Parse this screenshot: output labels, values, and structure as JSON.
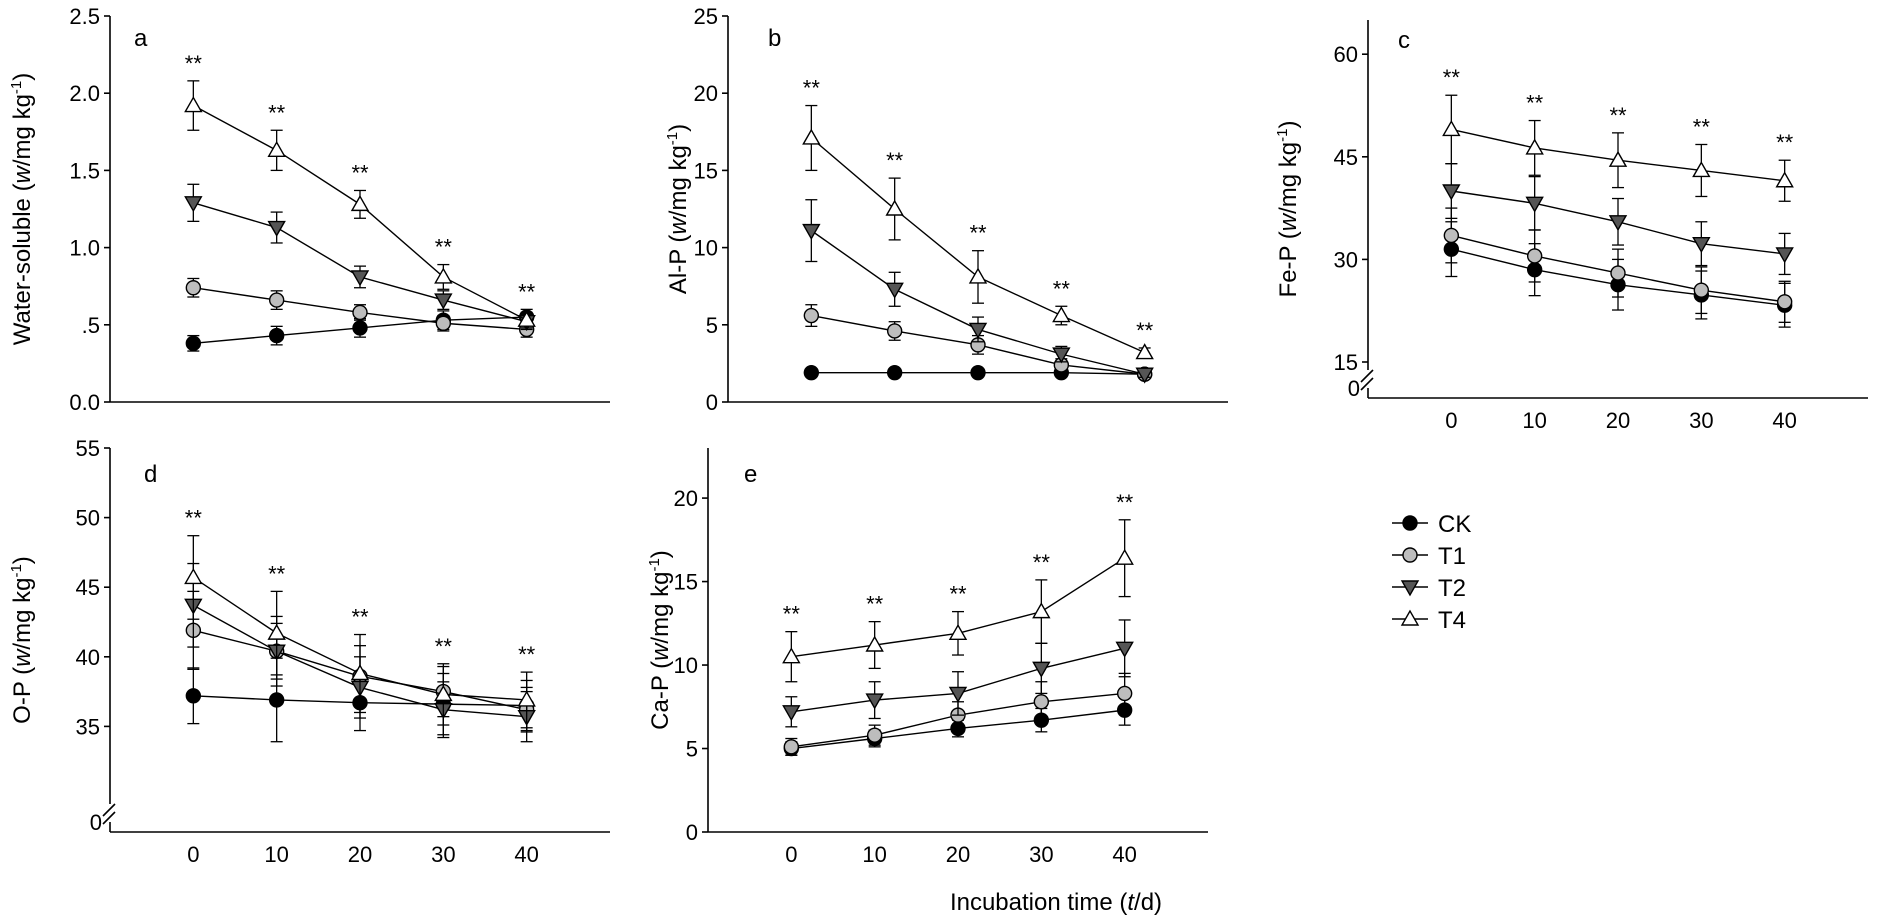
{
  "legend": [
    "CK",
    "T1",
    "T2",
    "T4"
  ],
  "shared_xlabel": {
    "pre": "Incubation time (",
    "var": "t",
    "post": "/d)"
  },
  "series_styles": {
    "CK": {
      "marker": "circle",
      "fill": "#000000"
    },
    "T1": {
      "marker": "circle",
      "fill": "#bdbdbd"
    },
    "T2": {
      "marker": "triangle-down",
      "fill": "#555555"
    },
    "T4": {
      "marker": "triangle-up",
      "fill": "#ffffff"
    }
  },
  "chart_data": [
    {
      "type": "line",
      "panel": "a",
      "ylabel": {
        "pre": "Water-soluble (",
        "var": "w",
        "post": "/mg kg",
        "sup": "-1",
        "end": ")"
      },
      "xlabel": "",
      "x": [
        0,
        10,
        20,
        30,
        40
      ],
      "xticks": [],
      "xlim": [
        -10,
        50
      ],
      "ylim": [
        0,
        2.5
      ],
      "yticks": [
        0,
        0.5,
        1.0,
        1.5,
        2.0,
        2.5
      ],
      "ytick_labels": [
        "0.0",
        ".5",
        "1.0",
        "1.5",
        "2.0",
        "2.5"
      ],
      "axis_break": false,
      "significance": [
        "**",
        "**",
        "**",
        "**",
        "**"
      ],
      "series": [
        {
          "name": "CK",
          "values": [
            0.38,
            0.43,
            0.48,
            0.53,
            0.55
          ],
          "err": [
            0.05,
            0.06,
            0.06,
            0.06,
            0.05
          ]
        },
        {
          "name": "T1",
          "values": [
            0.74,
            0.66,
            0.58,
            0.51,
            0.47
          ],
          "err": [
            0.06,
            0.06,
            0.05,
            0.05,
            0.05
          ]
        },
        {
          "name": "T2",
          "values": [
            1.29,
            1.13,
            0.81,
            0.66,
            0.52
          ],
          "err": [
            0.12,
            0.1,
            0.07,
            0.06,
            0.05
          ]
        },
        {
          "name": "T4",
          "values": [
            1.92,
            1.63,
            1.28,
            0.81,
            0.53
          ],
          "err": [
            0.16,
            0.13,
            0.09,
            0.08,
            0.05
          ]
        }
      ]
    },
    {
      "type": "line",
      "panel": "b",
      "ylabel": {
        "pre": "Al-P (",
        "var": "w",
        "post": "/mg kg",
        "sup": "-1",
        "end": ")"
      },
      "xlabel": "",
      "x": [
        0,
        10,
        20,
        30,
        40
      ],
      "xticks": [],
      "xlim": [
        -10,
        50
      ],
      "ylim": [
        0,
        25
      ],
      "yticks": [
        0,
        5,
        10,
        15,
        20,
        25
      ],
      "ytick_labels": [
        "0",
        "5",
        "10",
        "15",
        "20",
        "25"
      ],
      "axis_break": false,
      "significance": [
        "**",
        "**",
        "**",
        "**",
        "**"
      ],
      "series": [
        {
          "name": "CK",
          "values": [
            1.9,
            1.9,
            1.9,
            1.9,
            1.8
          ],
          "err": [
            0.2,
            0.2,
            0.2,
            0.2,
            0.2
          ]
        },
        {
          "name": "T1",
          "values": [
            5.6,
            4.6,
            3.7,
            2.4,
            1.8
          ],
          "err": [
            0.7,
            0.6,
            0.6,
            0.4,
            0.2
          ]
        },
        {
          "name": "T2",
          "values": [
            11.1,
            7.3,
            4.7,
            3.1,
            1.8
          ],
          "err": [
            2.0,
            1.1,
            0.8,
            0.5,
            0.2
          ]
        },
        {
          "name": "T4",
          "values": [
            17.1,
            12.5,
            8.1,
            5.6,
            3.2
          ],
          "err": [
            2.1,
            2.0,
            1.7,
            0.6,
            0.3
          ]
        }
      ]
    },
    {
      "type": "line",
      "panel": "c",
      "ylabel": {
        "pre": "Fe-P (",
        "var": "w",
        "post": "/mg kg",
        "sup": "-1",
        "end": ")"
      },
      "xlabel": "",
      "x": [
        0,
        10,
        20,
        30,
        40
      ],
      "xticks": [
        "0",
        "10",
        "20",
        "30",
        "40"
      ],
      "xlim": [
        -10,
        50
      ],
      "ylim": [
        15,
        65
      ],
      "yticks": [
        15,
        30,
        45,
        60
      ],
      "ytick_labels": [
        "15",
        "30",
        "45",
        "60"
      ],
      "axis_break": true,
      "break_label": "0",
      "significance": [
        "**",
        "**",
        "**",
        "**",
        "**"
      ],
      "series": [
        {
          "name": "CK",
          "values": [
            31.5,
            28.5,
            26.3,
            24.8,
            23.3
          ],
          "err": [
            4.0,
            3.8,
            3.7,
            3.5,
            3.2
          ]
        },
        {
          "name": "T1",
          "values": [
            33.5,
            30.5,
            28.0,
            25.5,
            23.8
          ],
          "err": [
            4.0,
            3.8,
            3.5,
            3.4,
            3.0
          ]
        },
        {
          "name": "T2",
          "values": [
            40.0,
            38.2,
            35.5,
            32.3,
            30.8
          ],
          "err": [
            4.0,
            3.9,
            3.4,
            3.2,
            3.0
          ]
        },
        {
          "name": "T4",
          "values": [
            49.0,
            46.3,
            44.5,
            43.0,
            41.5
          ],
          "err": [
            5.0,
            4.0,
            4.0,
            3.8,
            3.0
          ]
        }
      ]
    },
    {
      "type": "line",
      "panel": "d",
      "ylabel": {
        "pre": "O-P (",
        "var": "w",
        "post": "/mg kg",
        "sup": "-1",
        "end": ")"
      },
      "xlabel": "",
      "x": [
        0,
        10,
        20,
        30,
        40
      ],
      "xticks": [
        "0",
        "10",
        "20",
        "30",
        "40"
      ],
      "xlim": [
        -10,
        50
      ],
      "ylim": [
        30,
        55
      ],
      "yticks": [
        35,
        40,
        45,
        50,
        55
      ],
      "ytick_labels": [
        "35",
        "40",
        "45",
        "50",
        "55"
      ],
      "axis_break": true,
      "break_label": "0",
      "significance": [
        "**",
        "**",
        "**",
        "**",
        "**"
      ],
      "series": [
        {
          "name": "CK",
          "values": [
            37.2,
            36.9,
            36.7,
            36.6,
            36.5
          ],
          "err": [
            2.0,
            3.0,
            2.0,
            2.2,
            1.8
          ]
        },
        {
          "name": "T1",
          "values": [
            41.9,
            40.4,
            38.6,
            37.5,
            36.2
          ],
          "err": [
            2.8,
            2.0,
            2.2,
            1.8,
            1.6
          ]
        },
        {
          "name": "T2",
          "values": [
            43.7,
            40.4,
            37.8,
            36.2,
            35.7
          ],
          "err": [
            3.0,
            2.5,
            2.2,
            2.0,
            1.8
          ]
        },
        {
          "name": "T4",
          "values": [
            45.7,
            41.7,
            38.8,
            37.3,
            36.9
          ],
          "err": [
            3.0,
            3.0,
            2.8,
            2.2,
            2.0
          ]
        }
      ]
    },
    {
      "type": "line",
      "panel": "e",
      "ylabel": {
        "pre": "Ca-P (",
        "var": "w",
        "post": "/mg kg",
        "sup": "-1",
        "end": ")"
      },
      "xlabel": "",
      "x": [
        0,
        10,
        20,
        30,
        40
      ],
      "xticks": [
        "0",
        "10",
        "20",
        "30",
        "40"
      ],
      "xlim": [
        -10,
        50
      ],
      "ylim": [
        0,
        23
      ],
      "yticks": [
        0,
        5,
        10,
        15,
        20
      ],
      "ytick_labels": [
        "0",
        "5",
        "10",
        "15",
        "20"
      ],
      "axis_break": false,
      "significance": [
        "**",
        "**",
        "**",
        "**",
        "**"
      ],
      "series": [
        {
          "name": "CK",
          "values": [
            5.0,
            5.6,
            6.2,
            6.7,
            7.3
          ],
          "err": [
            0.4,
            0.5,
            0.5,
            0.7,
            0.9
          ]
        },
        {
          "name": "T1",
          "values": [
            5.1,
            5.8,
            7.0,
            7.8,
            8.3
          ],
          "err": [
            0.5,
            0.6,
            0.8,
            1.2,
            1.2
          ]
        },
        {
          "name": "T2",
          "values": [
            7.2,
            7.9,
            8.3,
            9.8,
            11.0
          ],
          "err": [
            0.9,
            1.1,
            1.3,
            1.5,
            1.7
          ]
        },
        {
          "name": "T4",
          "values": [
            10.5,
            11.2,
            11.9,
            13.2,
            16.4
          ],
          "err": [
            1.5,
            1.4,
            1.3,
            1.9,
            2.3
          ]
        }
      ]
    }
  ]
}
